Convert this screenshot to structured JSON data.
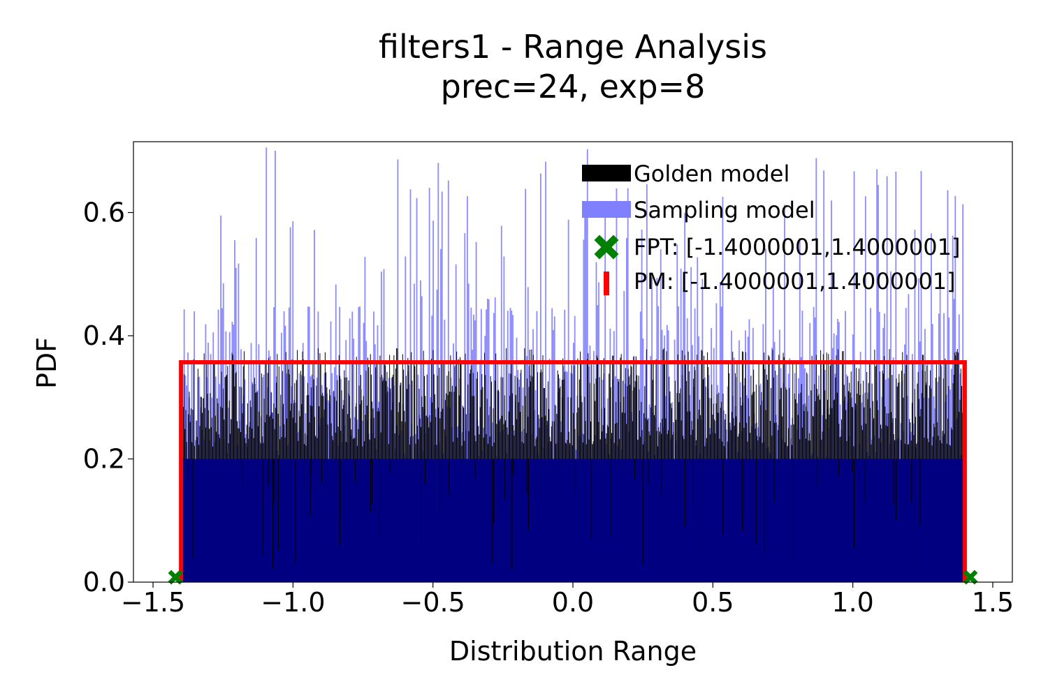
{
  "chart_data": {
    "type": "bar",
    "title_line1": "filters1 - Range Analysis",
    "title_line2": "prec=24, exp=8",
    "xlabel": "Distribution Range",
    "ylabel": "PDF",
    "xlim": [
      -1.57,
      1.57
    ],
    "ylim": [
      0,
      0.715
    ],
    "xticks": [
      -1.5,
      -1.0,
      -0.5,
      0.0,
      0.5,
      1.0,
      1.5
    ],
    "xtick_labels": [
      "−1.5",
      "−1.0",
      "−0.5",
      "0.0",
      "0.5",
      "1.0",
      "1.5"
    ],
    "yticks": [
      0.0,
      0.2,
      0.4,
      0.6
    ],
    "ytick_labels": [
      "0.0",
      "0.2",
      "0.4",
      "0.6"
    ],
    "grid": false,
    "legend_position": "top-right",
    "series": [
      {
        "name": "Golden model",
        "kind": "histogram",
        "color": "#000000",
        "range": [
          -1.4000001,
          1.4000001
        ],
        "typical_density": [
          0.22,
          0.38
        ]
      },
      {
        "name": "Sampling model",
        "kind": "histogram",
        "color": "#8080ff",
        "range": [
          -1.4000001,
          1.4000001
        ],
        "typical_density": [
          0.2,
          0.71
        ]
      },
      {
        "name": "FPT: [-1.4000001,1.4000001]",
        "kind": "markers",
        "marker": "X",
        "color": "#008000",
        "points": [
          [
            -1.42,
            0.008
          ],
          [
            1.42,
            0.008
          ]
        ]
      },
      {
        "name": "PM: [-1.4000001,1.4000001]",
        "kind": "line",
        "color": "#ff0000",
        "x": [
          -1.4000001,
          -1.4000001,
          1.4000001,
          1.4000001
        ],
        "y": [
          0.0,
          0.357,
          0.357,
          0.0
        ]
      }
    ],
    "density_floor_color": "#000080"
  }
}
